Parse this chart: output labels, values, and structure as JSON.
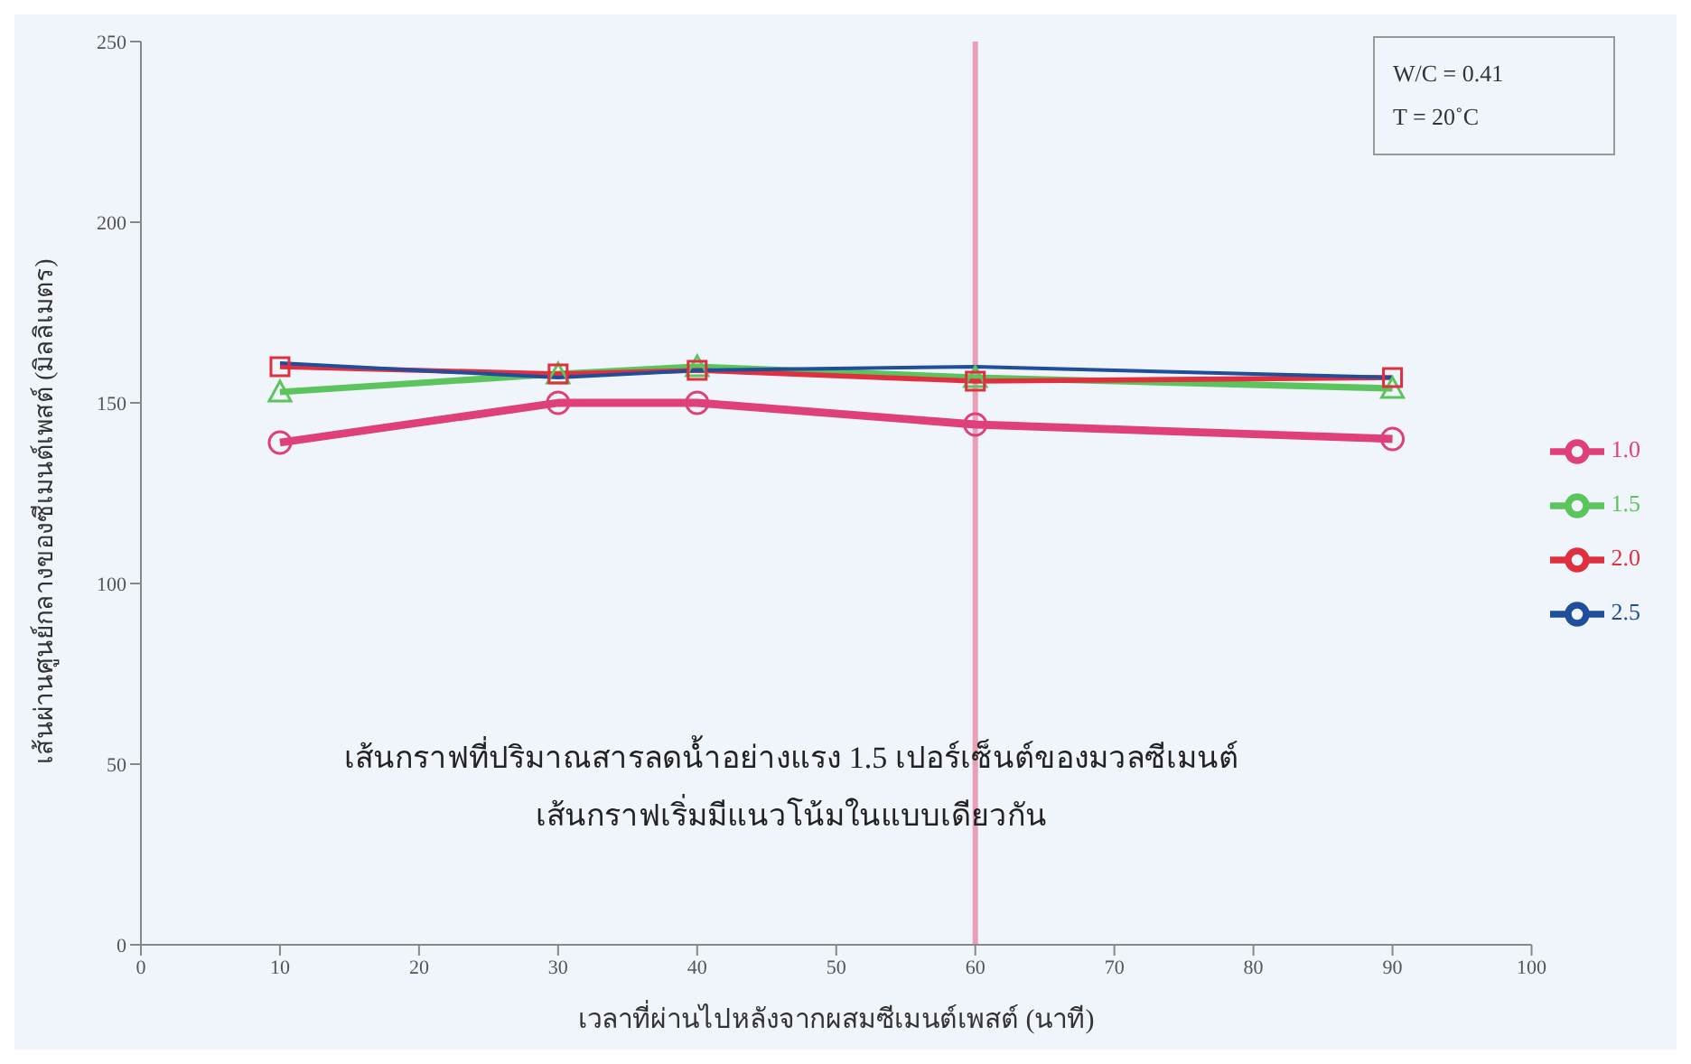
{
  "chart_data": {
    "type": "line",
    "xlabel": "เวลาที่ผ่านไปหลังจากผสมซีเมนต์เพสต์ (นาที)",
    "ylabel": "เส้นผ่านศูนย์กลางของซีเมนต์เพสต์ (มิลลิเมตร)",
    "x": [
      10,
      30,
      40,
      60,
      90
    ],
    "series": [
      {
        "name": "1.0",
        "color": "#e0407a",
        "marker": "circle",
        "values": [
          139,
          150,
          150,
          144,
          140
        ]
      },
      {
        "name": "1.5",
        "color": "#5cc45c",
        "marker": "triangle",
        "values": [
          153,
          158,
          160,
          157,
          154
        ]
      },
      {
        "name": "2.0",
        "color": "#e03040",
        "marker": "square",
        "values": [
          160,
          158,
          159,
          156,
          157
        ]
      },
      {
        "name": "2.5",
        "color": "#1f4e9a",
        "marker": "none",
        "values": [
          161,
          157,
          159,
          160,
          157
        ]
      }
    ],
    "xlim": [
      0,
      100
    ],
    "xticks": [
      0,
      10,
      20,
      30,
      40,
      50,
      60,
      70,
      80,
      90,
      100
    ],
    "ylim": [
      0,
      250
    ],
    "yticks": [
      0,
      50,
      100,
      150,
      200,
      250
    ],
    "grid": false,
    "legend": "right",
    "line_style": "solid",
    "ref_lines": [
      {
        "axis": "x",
        "value": 60,
        "color": "#e8a0b8"
      }
    ],
    "annotations": [
      "W/C = 0.41",
      "T = 20˚C",
      "เส้นกราฟที่ปริมาณสารลดน้ำอย่างแรง 1.5 เปอร์เซ็นต์ของมวลซีเมนต์",
      "เส้นกราฟเริ่มมีแนวโน้มในแบบเดียวกัน"
    ]
  }
}
